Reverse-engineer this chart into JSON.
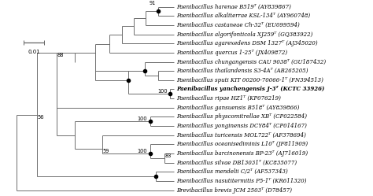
{
  "taxa": [
    "Paenibacillus harenae B519ᵀ (AY839867)",
    "Paenibacillus alkaliterrae KSL-134ᵀ (AY960748)",
    "Paenibacillus castaneae Ch-32ᵀ (EU099594)",
    "Paenibacillus algorifonticola XJ259ᵀ (GQ383922)",
    "Paenibacillus agarexedens DSM 1327ᵀ (AJ345020)",
    "Paenibacillus quercus 1-25ᵀ (JX409872)",
    "Paenibacillus chungangensis CAU 9038ᵀ (GU187432)",
    "Paenibacillus thailandensis S3-4Aᵀ (AB265205)",
    "Paenibacillus sputi KIT 00200-70066-1ᵀ (FN394513)",
    "Paenibacillus yanchengensis J-3ᵀ (KCTC 33926)",
    "Paenibacillus ripae HZ1ᵀ (KP076219)",
    "Paenibacillus gansuensis B518ᵀ (AY839866)",
    "Paenibacillus physcomitrellae XBᵀ (CP022584)",
    "Paenibacillus yonginensis DCY84ᵀ (CP014167)",
    "Paenibacillus turicensis MOL722ᵀ (AF378694)",
    "Paenibacillus oceanisediminis L10ᵀ (JF811909)",
    "Paenibacillus barcinonensis BP-23ᵀ (AJ716019)",
    "Paenibacillus silvae DB13031ᵀ (KC835077)",
    "Paenibacillus mendelii C/2ᵀ (AF537343)",
    "Paenibacillus nasutitermitis P5-1ᵀ (KR611320)",
    "Brevibacillus brevis JCM 2503ᵀ (D78457)"
  ],
  "bold_taxon_index": 9,
  "background_color": "#ffffff",
  "line_color": "#646464",
  "text_color": "#000000",
  "node_color": "#000000",
  "fontsize": 5.0,
  "bootstrap_fontsize": 4.8,
  "scale_bar_label": "0.01",
  "n_taxa": 21
}
